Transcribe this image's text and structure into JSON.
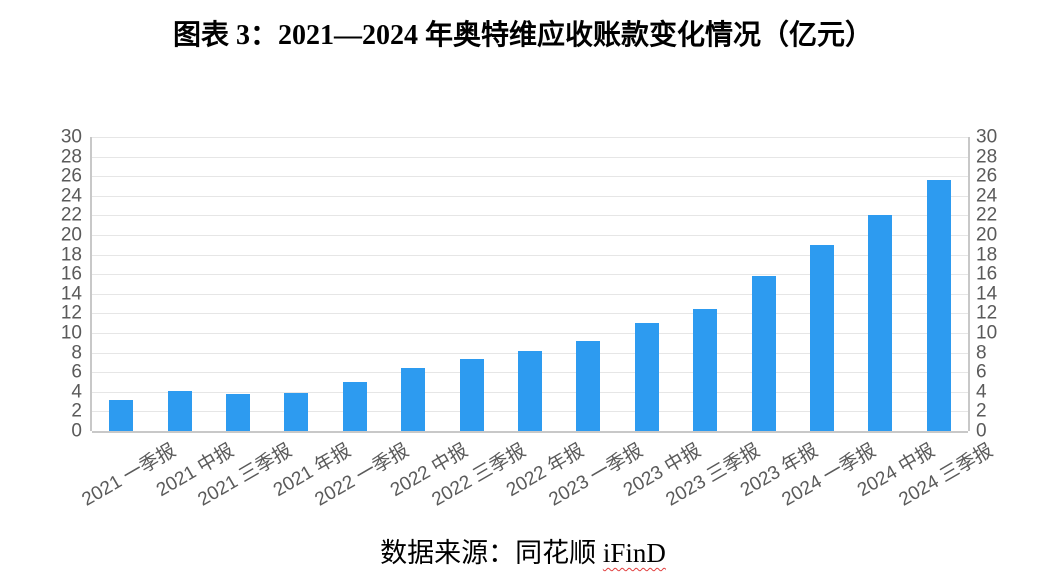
{
  "header": {
    "title": "图表 3：2021—2024 年奥特维应收账款变化情况（亿元）"
  },
  "footer": {
    "source_prefix": "数据来源：同花顺 ",
    "source_tool": "iFinD"
  },
  "chart_data": {
    "type": "bar",
    "title": "图表 3：2021—2024 年奥特维应收账款变化情况（亿元）",
    "unit": "亿元",
    "categories": [
      "2021 一季报",
      "2021 中报",
      "2021 三季报",
      "2021 年报",
      "2022 一季报",
      "2022 中报",
      "2022 三季报",
      "2022 年报",
      "2023 一季报",
      "2023 中报",
      "2023 三季报",
      "2023 年报",
      "2024 一季报",
      "2024 中报",
      "2024 三季报"
    ],
    "values": [
      3.2,
      4.1,
      3.8,
      3.9,
      5.0,
      6.4,
      7.3,
      8.2,
      9.2,
      11.0,
      12.4,
      15.8,
      19.0,
      22.0,
      25.6
    ],
    "ylim": [
      0,
      30
    ],
    "ytick_step": 2,
    "ytick_labels": [
      "0",
      "2",
      "4",
      "6",
      "8",
      "10",
      "12",
      "14",
      "16",
      "18",
      "20",
      "22",
      "24",
      "26",
      "28",
      "30"
    ],
    "grid": true,
    "yaxis_sides": "left-and-right",
    "xlabel_rotation_deg": -30,
    "source_text": "数据来源：同花顺 iFinD",
    "colors": {
      "bar": "#2d9bf0",
      "gridline": "#e6e6e6",
      "axis_line": "#c8c8c8",
      "tick_label": "#5a5a5a",
      "title_text": "#000000",
      "source_underline": "#e03c3c"
    }
  }
}
